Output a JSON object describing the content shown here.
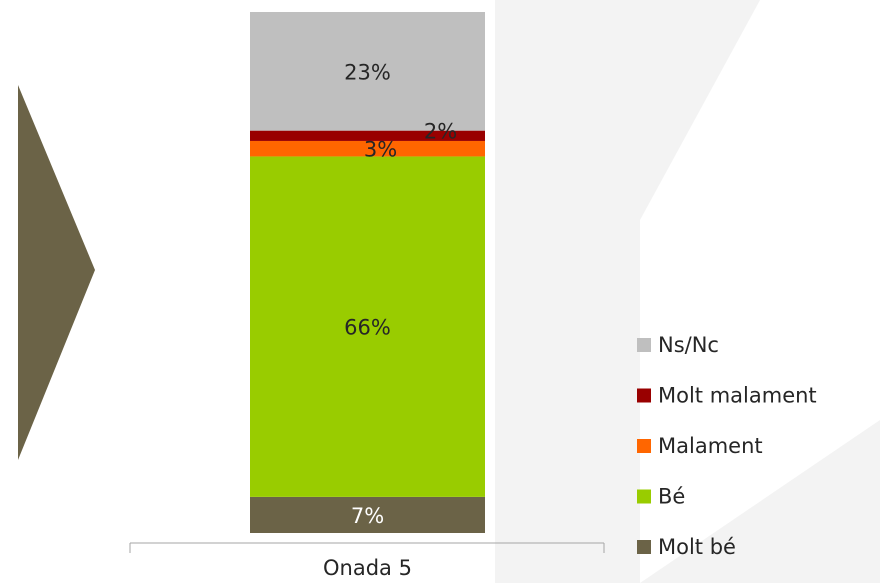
{
  "chart_data": {
    "type": "stacked_bar",
    "categories": [
      "Onada 5"
    ],
    "series": [
      {
        "name": "Molt bé",
        "color": "#6b6347",
        "values": [
          7
        ],
        "value_labels": [
          "7%"
        ]
      },
      {
        "name": "Bé",
        "color": "#99cc00",
        "values": [
          66
        ],
        "value_labels": [
          "66%"
        ]
      },
      {
        "name": "Malament",
        "color": "#ff6600",
        "values": [
          3
        ],
        "value_labels": [
          "3%"
        ]
      },
      {
        "name": "Molt malament",
        "color": "#990000",
        "values": [
          2
        ],
        "value_labels": [
          "2%"
        ]
      },
      {
        "name": "Ns/Nc",
        "color": "#bfbfbf",
        "values": [
          23
        ],
        "value_labels": [
          "23%"
        ]
      }
    ],
    "legend": "right"
  }
}
